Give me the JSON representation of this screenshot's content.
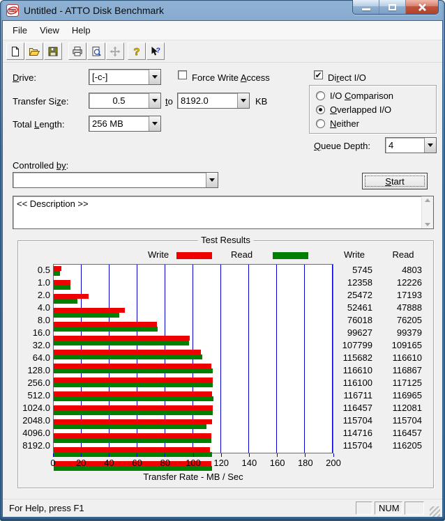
{
  "titlebar": {
    "title": "Untitled - ATTO Disk Benchmark"
  },
  "menu": {
    "items": [
      {
        "label": "File"
      },
      {
        "label": "View"
      },
      {
        "label": "Help"
      }
    ]
  },
  "toolbar": {
    "buttons": [
      "new",
      "open",
      "save",
      "print",
      "print-preview",
      "move",
      "help",
      "context-help"
    ]
  },
  "controls": {
    "drive": {
      "label": {
        "text": "Drive:",
        "accel": 0
      },
      "value": "[-c-]"
    },
    "force_write_access": {
      "label": {
        "text": "Force Write Access",
        "accel": 12
      },
      "checked": false
    },
    "direct_io": {
      "label": {
        "text": "Direct I/O",
        "accel": 2
      },
      "checked": true,
      "checkmark": "✔"
    },
    "transfer_size": {
      "label": {
        "text": "Transfer Size:",
        "accel": 11
      },
      "from": "0.5",
      "to_label": {
        "text": "to",
        "accel": 0
      },
      "to": "8192.0",
      "unit": "KB"
    },
    "total_length": {
      "label": {
        "text": "Total Length:",
        "accel": 6
      },
      "value": "256 MB"
    },
    "io_mode": {
      "options": [
        {
          "text": "I/O Comparison",
          "accel": 4
        },
        {
          "text": "Overlapped I/O",
          "accel": 0
        },
        {
          "text": "Neither",
          "accel": 0
        }
      ],
      "selected_index": 1
    },
    "queue_depth": {
      "label": {
        "text": "Queue Depth:",
        "accel": 0
      },
      "value": "4"
    },
    "controlled_by": {
      "label": {
        "text": "Controlled by:",
        "accel": 11,
        "len": 2
      },
      "value": ""
    },
    "start_button": {
      "text": "Start",
      "accel": 0
    },
    "description": "<< Description >>"
  },
  "results": {
    "group_label": "Test Results",
    "legend": {
      "write": "Write",
      "read": "Read"
    },
    "col_headers": {
      "write": "Write",
      "read": "Read"
    }
  },
  "chart_data": {
    "type": "bar",
    "orientation": "horizontal",
    "title": "Test Results",
    "categories": [
      "0.5",
      "1.0",
      "2.0",
      "4.0",
      "8.0",
      "16.0",
      "32.0",
      "64.0",
      "128.0",
      "256.0",
      "512.0",
      "1024.0",
      "2048.0",
      "4096.0",
      "8192.0"
    ],
    "series": [
      {
        "name": "Write",
        "color": "#ee0000",
        "values": [
          5745,
          12358,
          25472,
          52461,
          76018,
          99627,
          107799,
          115682,
          116610,
          116100,
          116711,
          116457,
          115704,
          114716,
          115704
        ]
      },
      {
        "name": "Read",
        "color": "#008000",
        "values": [
          4803,
          12226,
          17193,
          47888,
          76205,
          99379,
          109165,
          116610,
          116867,
          117125,
          116965,
          112081,
          115704,
          116457,
          116205
        ]
      }
    ],
    "value_unit": "KB/s",
    "unit_divisor": 1024,
    "xlim": [
      0,
      200
    ],
    "xticks": [
      0,
      20,
      40,
      60,
      80,
      100,
      120,
      140,
      160,
      180,
      200
    ],
    "xlabel": "Transfer Rate - MB / Sec",
    "grid": "vertical",
    "grid_color": "#0000cc",
    "legend_position": "top"
  },
  "statusbar": {
    "message": "For Help, press F1",
    "num": "NUM"
  }
}
